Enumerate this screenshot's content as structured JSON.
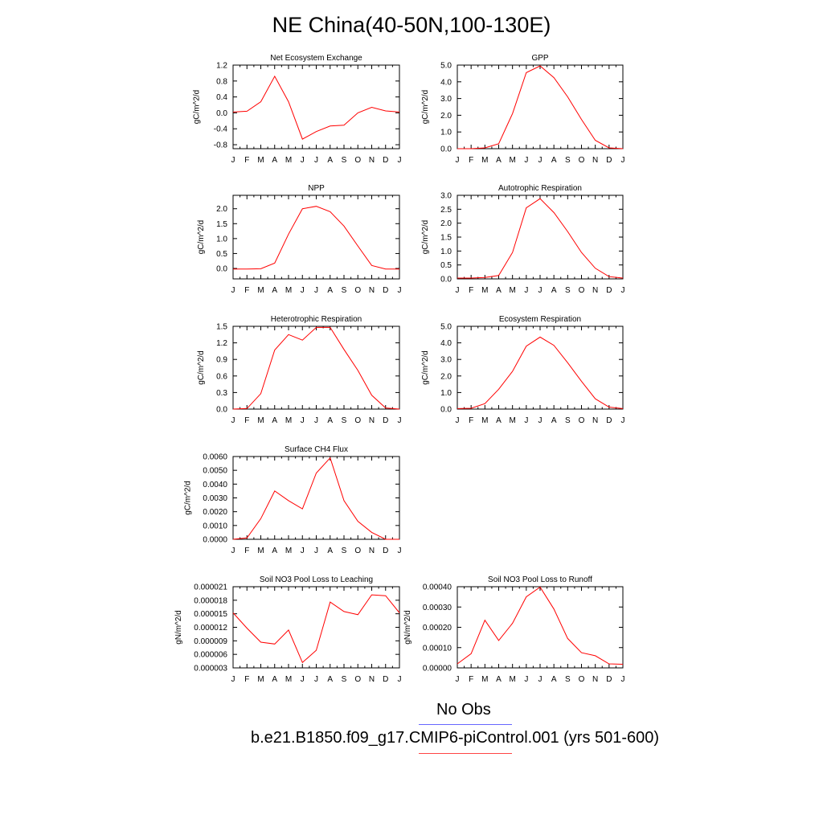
{
  "title": "NE China(40-50N,100-130E)",
  "legend": {
    "obs_label": "No Obs",
    "obs_color": "#6666ff",
    "model_label": "b.e21.B1850.f09_g17.CMIP6-piControl.001 (yrs 501-600)",
    "model_color": "#ff0000"
  },
  "chart_data": [
    {
      "type": "line",
      "title": "Net Ecosystem Exchange",
      "ylabel": "gC/m^2/d",
      "categories": [
        "J",
        "F",
        "M",
        "A",
        "M",
        "J",
        "J",
        "A",
        "S",
        "O",
        "N",
        "D",
        "J"
      ],
      "values": [
        0.02,
        0.04,
        0.28,
        0.92,
        0.28,
        -0.66,
        -0.47,
        -0.33,
        -0.31,
        0.0,
        0.14,
        0.05,
        0.02
      ],
      "ylim": [
        -0.9,
        1.2
      ],
      "yticks": [
        "1.2",
        "0.8",
        "0.4",
        "0.0",
        "-0.4",
        "-0.8"
      ],
      "ytick_values": [
        1.2,
        0.8,
        0.4,
        0.0,
        -0.4,
        -0.8
      ]
    },
    {
      "type": "line",
      "title": "GPP",
      "ylabel": "gC/m^2/d",
      "categories": [
        "J",
        "F",
        "M",
        "A",
        "M",
        "J",
        "J",
        "A",
        "S",
        "O",
        "N",
        "D",
        "J"
      ],
      "values": [
        0.0,
        0.0,
        0.05,
        0.3,
        2.1,
        4.55,
        4.95,
        4.25,
        3.1,
        1.75,
        0.5,
        0.05,
        0.0
      ],
      "ylim": [
        0.0,
        5.0
      ],
      "yticks": [
        "5.0",
        "4.0",
        "3.0",
        "2.0",
        "1.0",
        "0.0"
      ],
      "ytick_values": [
        5.0,
        4.0,
        3.0,
        2.0,
        1.0,
        0.0
      ]
    },
    {
      "type": "line",
      "title": "NPP",
      "ylabel": "gC/m^2/d",
      "categories": [
        "J",
        "F",
        "M",
        "A",
        "M",
        "J",
        "J",
        "A",
        "S",
        "O",
        "N",
        "D",
        "J"
      ],
      "values": [
        -0.02,
        -0.02,
        -0.01,
        0.18,
        1.15,
        2.0,
        2.08,
        1.9,
        1.42,
        0.75,
        0.1,
        -0.02,
        -0.02
      ],
      "ylim": [
        -0.35,
        2.45
      ],
      "yticks": [
        "2.0",
        "1.5",
        "1.0",
        "0.5",
        "0.0"
      ],
      "ytick_values": [
        2.0,
        1.5,
        1.0,
        0.5,
        0.0
      ]
    },
    {
      "type": "line",
      "title": "Autotrophic Respiration",
      "ylabel": "gC/m^2/d",
      "categories": [
        "J",
        "F",
        "M",
        "A",
        "M",
        "J",
        "J",
        "A",
        "S",
        "O",
        "N",
        "D",
        "J"
      ],
      "values": [
        0.03,
        0.03,
        0.05,
        0.12,
        0.95,
        2.55,
        2.88,
        2.38,
        1.7,
        0.95,
        0.38,
        0.08,
        0.03
      ],
      "ylim": [
        0.0,
        3.0
      ],
      "yticks": [
        "3.0",
        "2.5",
        "2.0",
        "1.5",
        "1.0",
        "0.5",
        "0.0"
      ],
      "ytick_values": [
        3.0,
        2.5,
        2.0,
        1.5,
        1.0,
        0.5,
        0.0
      ]
    },
    {
      "type": "line",
      "title": "Heterotrophic Respiration",
      "ylabel": "gC/m^2/d",
      "categories": [
        "J",
        "F",
        "M",
        "A",
        "M",
        "J",
        "J",
        "A",
        "S",
        "O",
        "N",
        "D",
        "J"
      ],
      "values": [
        0.0,
        0.01,
        0.28,
        1.07,
        1.35,
        1.25,
        1.48,
        1.48,
        1.08,
        0.7,
        0.25,
        0.02,
        0.0
      ],
      "ylim": [
        0.0,
        1.5
      ],
      "yticks": [
        "1.5",
        "1.2",
        "0.9",
        "0.6",
        "0.3",
        "0.0"
      ],
      "ytick_values": [
        1.5,
        1.2,
        0.9,
        0.6,
        0.3,
        0.0
      ]
    },
    {
      "type": "line",
      "title": "Ecosystem Respiration",
      "ylabel": "gC/m^2/d",
      "categories": [
        "J",
        "F",
        "M",
        "A",
        "M",
        "J",
        "J",
        "A",
        "S",
        "O",
        "N",
        "D",
        "J"
      ],
      "values": [
        0.03,
        0.05,
        0.33,
        1.2,
        2.28,
        3.8,
        4.35,
        3.85,
        2.8,
        1.68,
        0.62,
        0.12,
        0.03
      ],
      "ylim": [
        0.0,
        5.0
      ],
      "yticks": [
        "5.0",
        "4.0",
        "3.0",
        "2.0",
        "1.0",
        "0.0"
      ],
      "ytick_values": [
        5.0,
        4.0,
        3.0,
        2.0,
        1.0,
        0.0
      ]
    },
    {
      "type": "line",
      "title": "Surface CH4 Flux",
      "ylabel": "gC/m^2/d",
      "categories": [
        "J",
        "F",
        "M",
        "A",
        "M",
        "J",
        "J",
        "A",
        "S",
        "O",
        "N",
        "D",
        "J"
      ],
      "values": [
        0.0,
        0.0001,
        0.0015,
        0.0035,
        0.0028,
        0.0022,
        0.0048,
        0.0059,
        0.0028,
        0.0013,
        0.0005,
        0.0,
        0.0
      ],
      "ylim": [
        0.0,
        0.006
      ],
      "yticks": [
        "0.0060",
        "0.0050",
        "0.0040",
        "0.0030",
        "0.0020",
        "0.0010",
        "0.0000"
      ],
      "ytick_values": [
        0.006,
        0.005,
        0.004,
        0.003,
        0.002,
        0.001,
        0.0
      ]
    },
    {
      "type": "line",
      "title": "Soil NO3 Pool Loss to Leaching",
      "ylabel": "gN/m^2/d",
      "categories": [
        "J",
        "F",
        "M",
        "A",
        "M",
        "J",
        "J",
        "A",
        "S",
        "O",
        "N",
        "D",
        "J"
      ],
      "values": [
        1.52e-05,
        1.18e-05,
        8.7e-06,
        8.3e-06,
        1.14e-05,
        4.2e-06,
        6.9e-06,
        1.76e-05,
        1.55e-05,
        1.48e-05,
        1.92e-05,
        1.9e-05,
        1.52e-05
      ],
      "ylim": [
        3e-06,
        2.1e-05
      ],
      "yticks": [
        "0.000021",
        "0.000018",
        "0.000015",
        "0.000012",
        "0.000009",
        "0.000006",
        "0.000003"
      ],
      "ytick_values": [
        2.1e-05,
        1.8e-05,
        1.5e-05,
        1.2e-05,
        9e-06,
        6e-06,
        3e-06
      ]
    },
    {
      "type": "line",
      "title": "Soil NO3 Pool Loss to Runoff",
      "ylabel": "gN/m^2/d",
      "categories": [
        "J",
        "F",
        "M",
        "A",
        "M",
        "J",
        "J",
        "A",
        "S",
        "O",
        "N",
        "D",
        "J"
      ],
      "values": [
        2e-05,
        7e-05,
        0.000235,
        0.000135,
        0.00022,
        0.00035,
        0.000398,
        0.00029,
        0.000145,
        7.5e-05,
        6e-05,
        2e-05,
        1.8e-05
      ],
      "ylim": [
        0.0,
        0.0004
      ],
      "yticks": [
        "0.00040",
        "0.00030",
        "0.00020",
        "0.00010",
        "0.00000"
      ],
      "ytick_values": [
        0.0004,
        0.0003,
        0.0002,
        0.0001,
        0.0
      ]
    }
  ]
}
